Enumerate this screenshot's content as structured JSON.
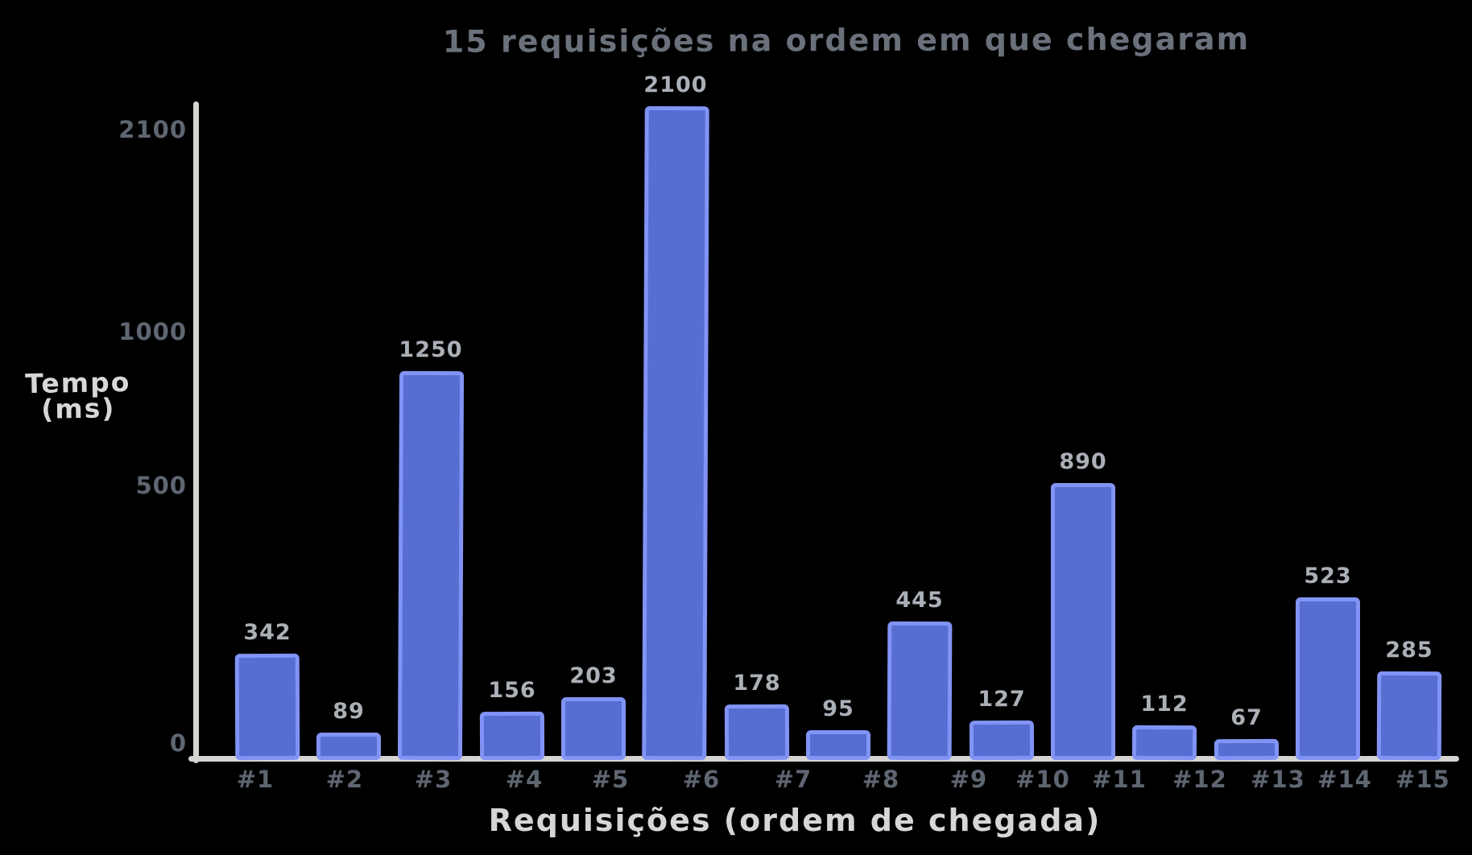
{
  "title": "15 requisições na ordem em que chegaram",
  "y_axis_label_line1": "Tempo",
  "y_axis_label_line2": "(ms)",
  "x_axis_label": "Requisições (ordem de chegada)",
  "chart_data": {
    "type": "bar",
    "title": "15 requisições na ordem em que chegaram",
    "categories": [
      "#1",
      "#2",
      "#3",
      "#4",
      "#5",
      "#6",
      "#7",
      "#8",
      "#9",
      "#10",
      "#11",
      "#12",
      "#13",
      "#14",
      "#15"
    ],
    "values": [
      342,
      89,
      1250,
      156,
      203,
      2100,
      178,
      95,
      445,
      127,
      890,
      112,
      67,
      523,
      285
    ],
    "xlabel": "Requisições (ordem de chegada)",
    "ylabel": "Tempo (ms)",
    "yticks": [
      0,
      500,
      1000,
      2100
    ],
    "ylim": [
      0,
      2200
    ],
    "grid": false,
    "value_labels_shown": true,
    "legend": "none",
    "colors": {
      "background": "#000000",
      "bar_fill": "#566dd2",
      "bar_stroke": "#8194f5",
      "axis_line": "#d5d4d1",
      "axis_title_text": "#d6d7d8",
      "tick_text": "#5e6671",
      "value_label_text": "#abb0b7",
      "chart_title_text": "#6a717b"
    }
  }
}
